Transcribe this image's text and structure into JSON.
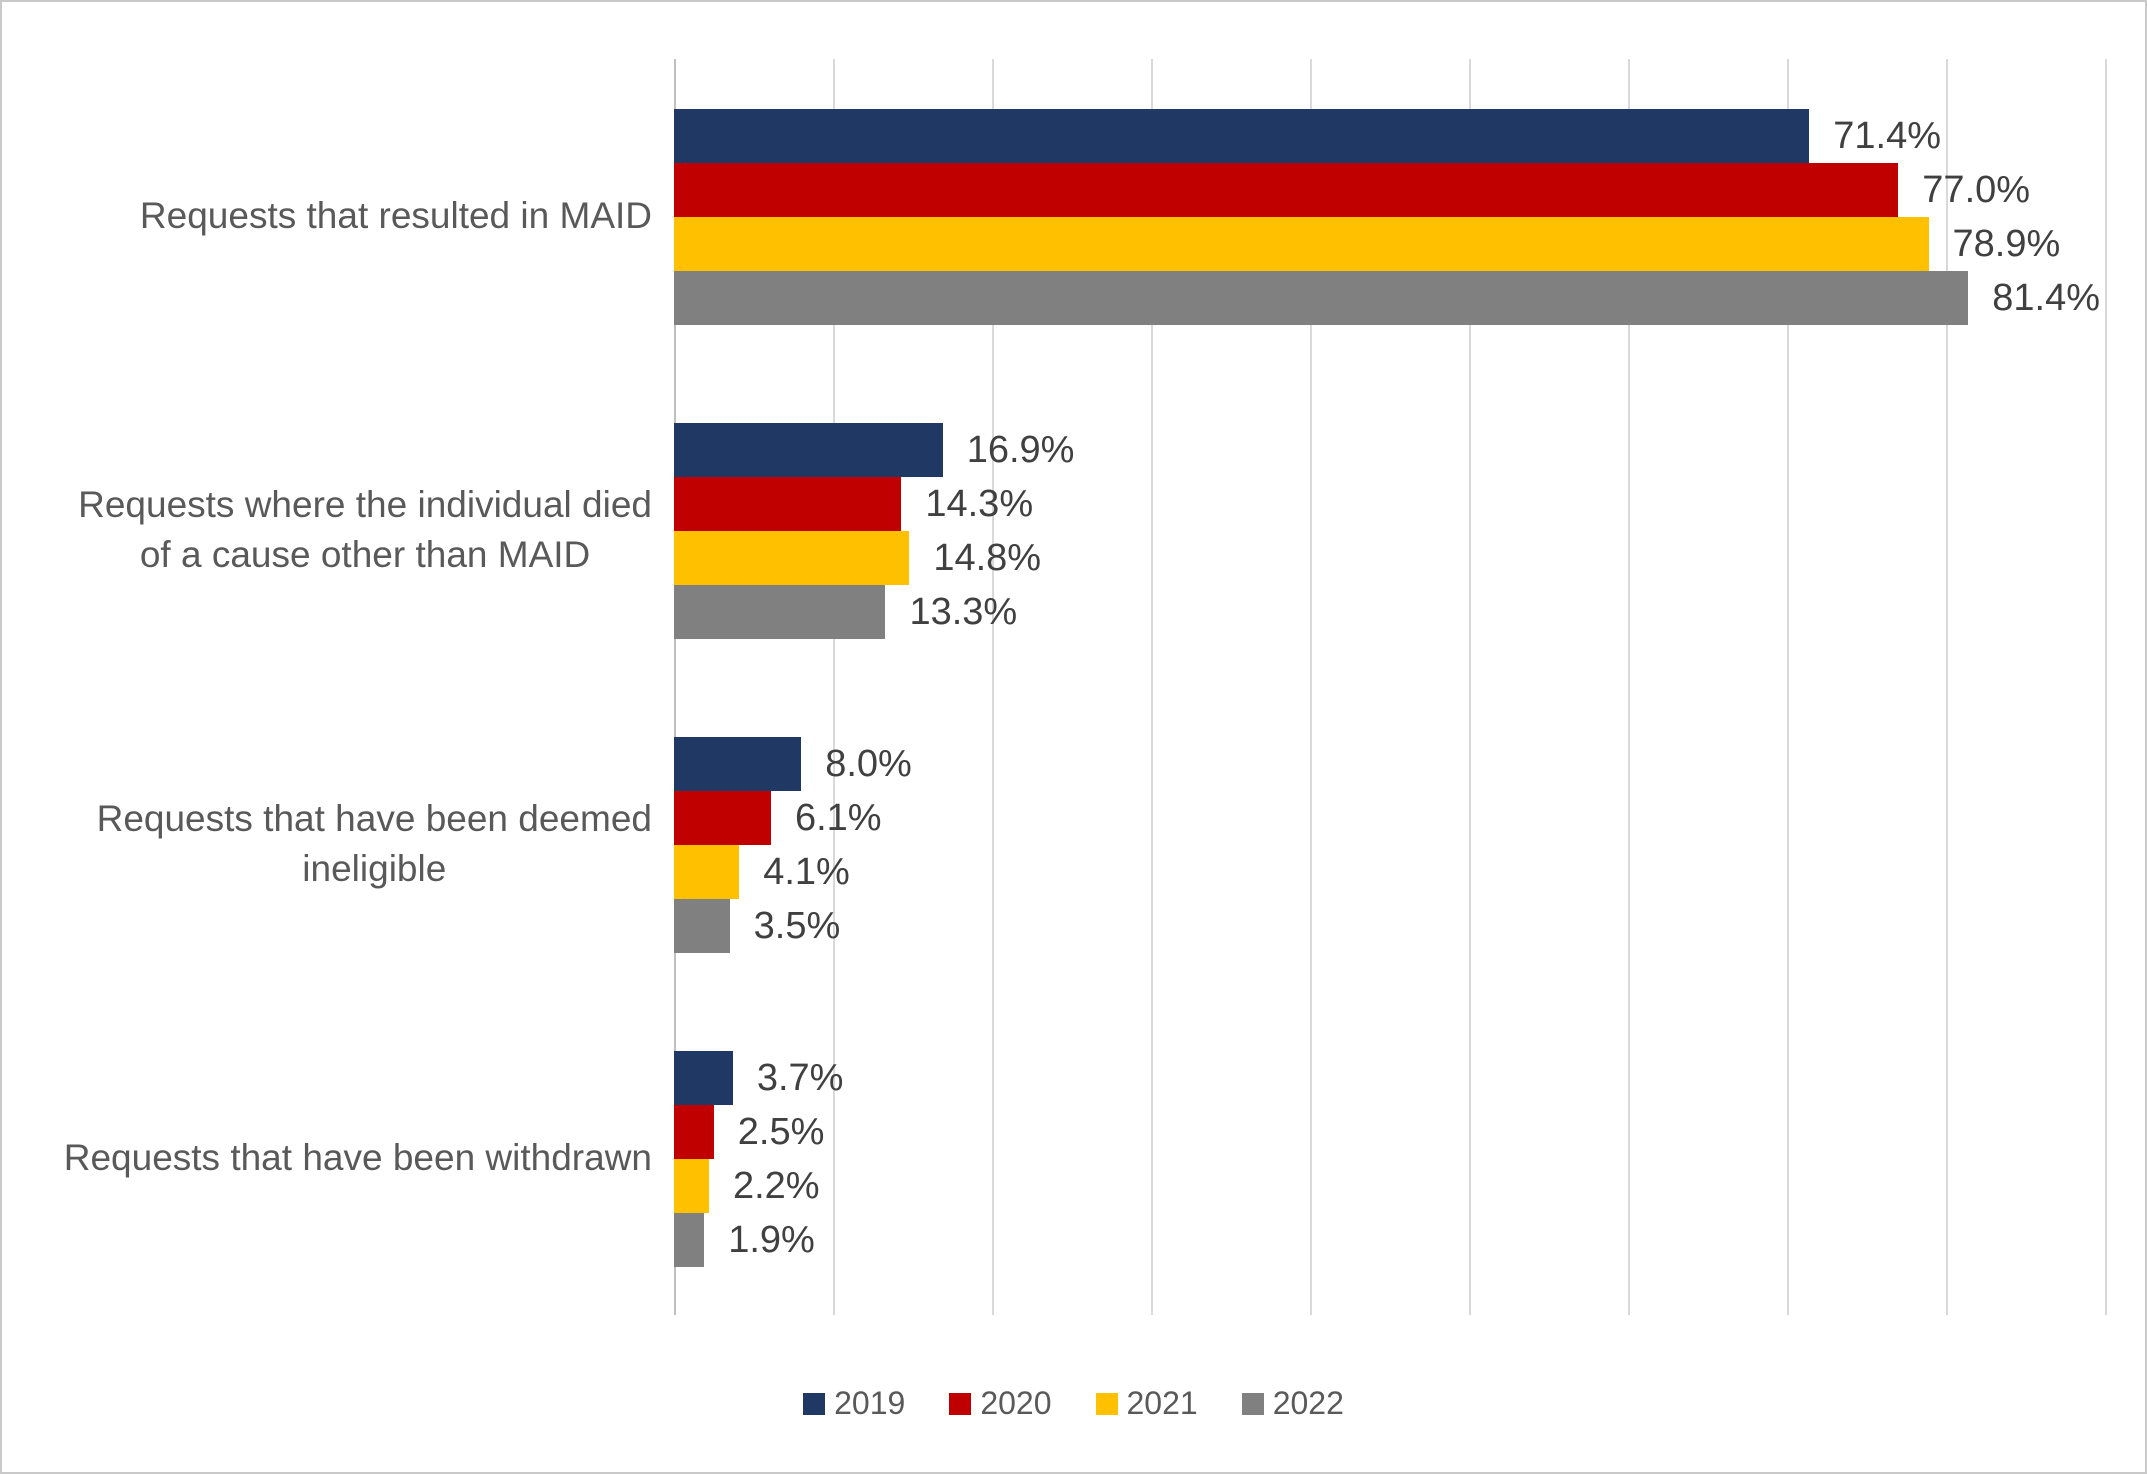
{
  "chart_data": {
    "type": "bar",
    "orientation": "horizontal",
    "title": "",
    "xlabel": "",
    "ylabel": "",
    "categories": [
      "Requests that resulted in MAID",
      "Requests where the individual died of a cause other than MAID",
      "Requests that have been deemed ineligible",
      "Requests that have been withdrawn"
    ],
    "category_label_lines": [
      [
        "Requests that resulted in MAID"
      ],
      [
        "Requests where the individual died",
        "of a cause other than MAID"
      ],
      [
        "Requests that have been deemed",
        "ineligible"
      ],
      [
        "Requests that have been withdrawn"
      ]
    ],
    "series": [
      {
        "name": "2019",
        "color": "#1F3864",
        "values": [
          71.4,
          16.9,
          8.0,
          3.7
        ],
        "labels": [
          "71.4%",
          "16.9%",
          "8.0%",
          "3.7%"
        ]
      },
      {
        "name": "2020",
        "color": "#C00000",
        "values": [
          77.0,
          14.3,
          6.1,
          2.5
        ],
        "labels": [
          "77.0%",
          "14.3%",
          "6.1%",
          "2.5%"
        ]
      },
      {
        "name": "2021",
        "color": "#FFC000",
        "values": [
          78.9,
          14.8,
          4.1,
          2.2
        ],
        "labels": [
          "78.9%",
          "14.8%",
          "4.1%",
          "2.2%"
        ]
      },
      {
        "name": "2022",
        "color": "#808080",
        "values": [
          81.4,
          13.3,
          3.5,
          1.9
        ],
        "labels": [
          "81.4%",
          "13.3%",
          "3.5%",
          "1.9%"
        ]
      }
    ],
    "xlim": [
      0,
      90
    ],
    "gridline_interval": 10,
    "grid": true,
    "gridline_color": "#D9D9D9",
    "legend_position": "bottom",
    "background": "#FFFFFF"
  }
}
